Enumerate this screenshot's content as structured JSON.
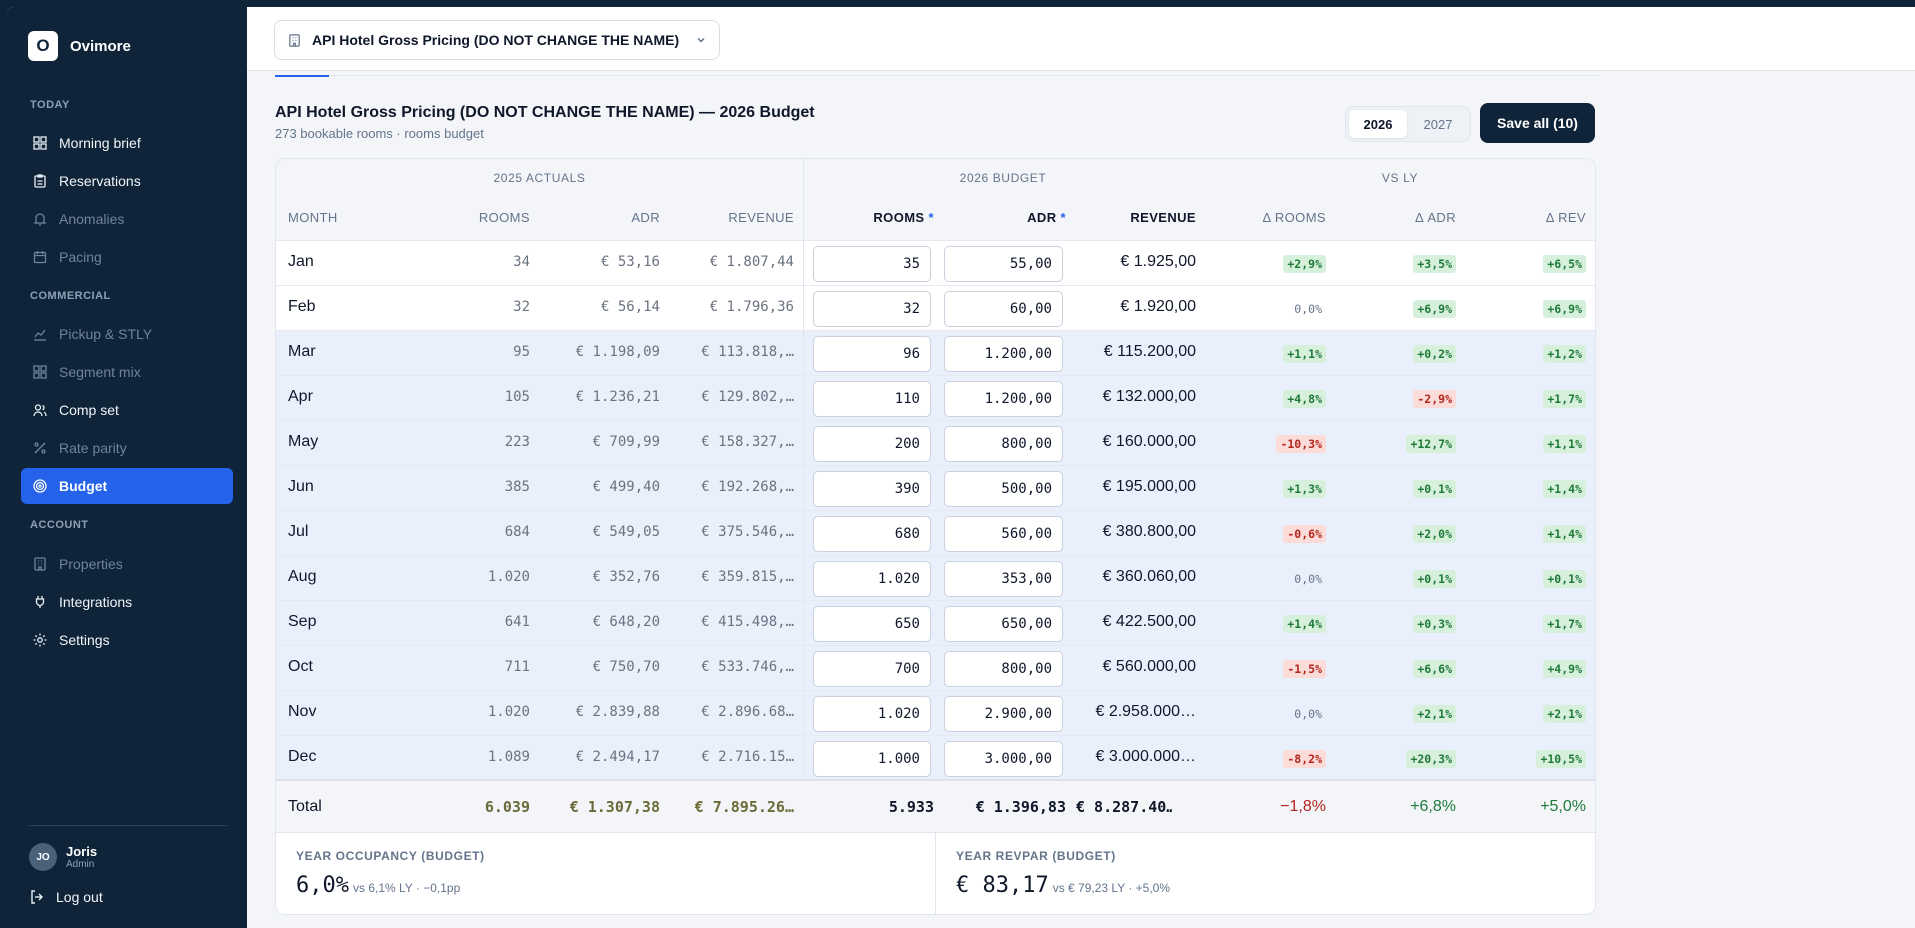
{
  "brand": {
    "logo_letter": "O",
    "name": "Ovimore"
  },
  "nav": {
    "sections": [
      "TODAY",
      "COMMERCIAL",
      "ACCOUNT"
    ],
    "items": [
      {
        "label": "Morning brief",
        "icon": "grid-icon",
        "state": "normal"
      },
      {
        "label": "Reservations",
        "icon": "clipboard-icon",
        "state": "normal"
      },
      {
        "label": "Anomalies",
        "icon": "bell-icon",
        "state": "dim"
      },
      {
        "label": "Pacing",
        "icon": "calendar-icon",
        "state": "dim"
      },
      {
        "label": "Pickup & STLY",
        "icon": "line-chart-icon",
        "state": "dim"
      },
      {
        "label": "Segment mix",
        "icon": "grid-icon",
        "state": "dim"
      },
      {
        "label": "Comp set",
        "icon": "users-icon",
        "state": "normal"
      },
      {
        "label": "Rate parity",
        "icon": "percent-icon",
        "state": "dim"
      },
      {
        "label": "Budget",
        "icon": "target-icon",
        "state": "active"
      },
      {
        "label": "Properties",
        "icon": "building-icon",
        "state": "dim"
      },
      {
        "label": "Integrations",
        "icon": "plug-icon",
        "state": "normal"
      },
      {
        "label": "Settings",
        "icon": "gear-icon",
        "state": "normal"
      }
    ]
  },
  "user": {
    "initials": "JO",
    "name": "Joris",
    "role": "Admin",
    "logout": "Log out"
  },
  "topbar": {
    "property": "API Hotel Gross Pricing (DO NOT CHANGE THE NAME)"
  },
  "header": {
    "title": "API Hotel Gross Pricing (DO NOT CHANGE THE NAME) — 2026 Budget",
    "subtitle": "273 bookable rooms · rooms budget",
    "years": [
      "2026",
      "2027"
    ],
    "selected_year": "2026",
    "save_label": "Save all (10)"
  },
  "table": {
    "groups": {
      "actuals": "2025 ACTUALS",
      "budget": "2026 BUDGET",
      "vs": "VS LY"
    },
    "columns": {
      "month": "MONTH",
      "a_rooms": "ROOMS",
      "a_adr": "ADR",
      "a_rev": "REVENUE",
      "b_rooms": "ROOMS",
      "b_adr": "ADR",
      "b_rev": "REVENUE",
      "d_rooms": "Δ ROOMS",
      "d_adr": "Δ ADR",
      "d_rev": "Δ REV",
      "required_mark": "*"
    },
    "rows": [
      {
        "month": "Jan",
        "a_rooms": "34",
        "a_adr": "€ 53,16",
        "a_rev": "€ 1.807,44",
        "b_rooms": "35",
        "b_adr": "55,00",
        "b_rev": "€ 1.925,00",
        "d_rooms": "+2,9%",
        "d_adr": "+3,5%",
        "d_rev": "+6,5%",
        "tint": false
      },
      {
        "month": "Feb",
        "a_rooms": "32",
        "a_adr": "€ 56,14",
        "a_rev": "€ 1.796,36",
        "b_rooms": "32",
        "b_adr": "60,00",
        "b_rev": "€ 1.920,00",
        "d_rooms": "0,0%",
        "d_adr": "+6,9%",
        "d_rev": "+6,9%",
        "tint": false
      },
      {
        "month": "Mar",
        "a_rooms": "95",
        "a_adr": "€ 1.198,09",
        "a_rev": "€ 113.818,…",
        "b_rooms": "96",
        "b_adr": "1.200,00",
        "b_rev": "€ 115.200,00",
        "d_rooms": "+1,1%",
        "d_adr": "+0,2%",
        "d_rev": "+1,2%",
        "tint": true
      },
      {
        "month": "Apr",
        "a_rooms": "105",
        "a_adr": "€ 1.236,21",
        "a_rev": "€ 129.802,…",
        "b_rooms": "110",
        "b_adr": "1.200,00",
        "b_rev": "€ 132.000,00",
        "d_rooms": "+4,8%",
        "d_adr": "-2,9%",
        "d_rev": "+1,7%",
        "tint": true
      },
      {
        "month": "May",
        "a_rooms": "223",
        "a_adr": "€ 709,99",
        "a_rev": "€ 158.327,…",
        "b_rooms": "200",
        "b_adr": "800,00",
        "b_rev": "€ 160.000,00",
        "d_rooms": "-10,3%",
        "d_adr": "+12,7%",
        "d_rev": "+1,1%",
        "tint": true
      },
      {
        "month": "Jun",
        "a_rooms": "385",
        "a_adr": "€ 499,40",
        "a_rev": "€ 192.268,…",
        "b_rooms": "390",
        "b_adr": "500,00",
        "b_rev": "€ 195.000,00",
        "d_rooms": "+1,3%",
        "d_adr": "+0,1%",
        "d_rev": "+1,4%",
        "tint": true
      },
      {
        "month": "Jul",
        "a_rooms": "684",
        "a_adr": "€ 549,05",
        "a_rev": "€ 375.546,…",
        "b_rooms": "680",
        "b_adr": "560,00",
        "b_rev": "€ 380.800,00",
        "d_rooms": "-0,6%",
        "d_adr": "+2,0%",
        "d_rev": "+1,4%",
        "tint": true
      },
      {
        "month": "Aug",
        "a_rooms": "1.020",
        "a_adr": "€ 352,76",
        "a_rev": "€ 359.815,…",
        "b_rooms": "1.020",
        "b_adr": "353,00",
        "b_rev": "€ 360.060,00",
        "d_rooms": "0,0%",
        "d_adr": "+0,1%",
        "d_rev": "+0,1%",
        "tint": true
      },
      {
        "month": "Sep",
        "a_rooms": "641",
        "a_adr": "€ 648,20",
        "a_rev": "€ 415.498,…",
        "b_rooms": "650",
        "b_adr": "650,00",
        "b_rev": "€ 422.500,00",
        "d_rooms": "+1,4%",
        "d_adr": "+0,3%",
        "d_rev": "+1,7%",
        "tint": true
      },
      {
        "month": "Oct",
        "a_rooms": "711",
        "a_adr": "€ 750,70",
        "a_rev": "€ 533.746,…",
        "b_rooms": "700",
        "b_adr": "800,00",
        "b_rev": "€ 560.000,00",
        "d_rooms": "-1,5%",
        "d_adr": "+6,6%",
        "d_rev": "+4,9%",
        "tint": true
      },
      {
        "month": "Nov",
        "a_rooms": "1.020",
        "a_adr": "€ 2.839,88",
        "a_rev": "€ 2.896.68…",
        "b_rooms": "1.020",
        "b_adr": "2.900,00",
        "b_rev": "€ 2.958.000…",
        "d_rooms": "0,0%",
        "d_adr": "+2,1%",
        "d_rev": "+2,1%",
        "tint": true
      },
      {
        "month": "Dec",
        "a_rooms": "1.089",
        "a_adr": "€ 2.494,17",
        "a_rev": "€ 2.716.15…",
        "b_rooms": "1.000",
        "b_adr": "3.000,00",
        "b_rev": "€ 3.000.000…",
        "d_rooms": "-8,2%",
        "d_adr": "+20,3%",
        "d_rev": "+10,5%",
        "tint": true
      }
    ],
    "total": {
      "label": "Total",
      "a_rooms": "6.039",
      "a_adr": "€ 1.307,38",
      "a_rev": "€ 7.895.26…",
      "b_rooms": "5.933",
      "b_adr": "€ 1.396,83",
      "b_rev": "€ 8.287.40…",
      "d_rooms": "−1,8%",
      "d_adr": "+6,8%",
      "d_rev": "+5,0%"
    }
  },
  "kpis": [
    {
      "label": "YEAR OCCUPANCY (BUDGET)",
      "value": "6,0%",
      "sub": "vs 6,1% LY · −0,1pp"
    },
    {
      "label": "YEAR REVPAR (BUDGET)",
      "value": "€ 83,17",
      "sub": "vs € 79,23 LY · +5,0%"
    }
  ]
}
